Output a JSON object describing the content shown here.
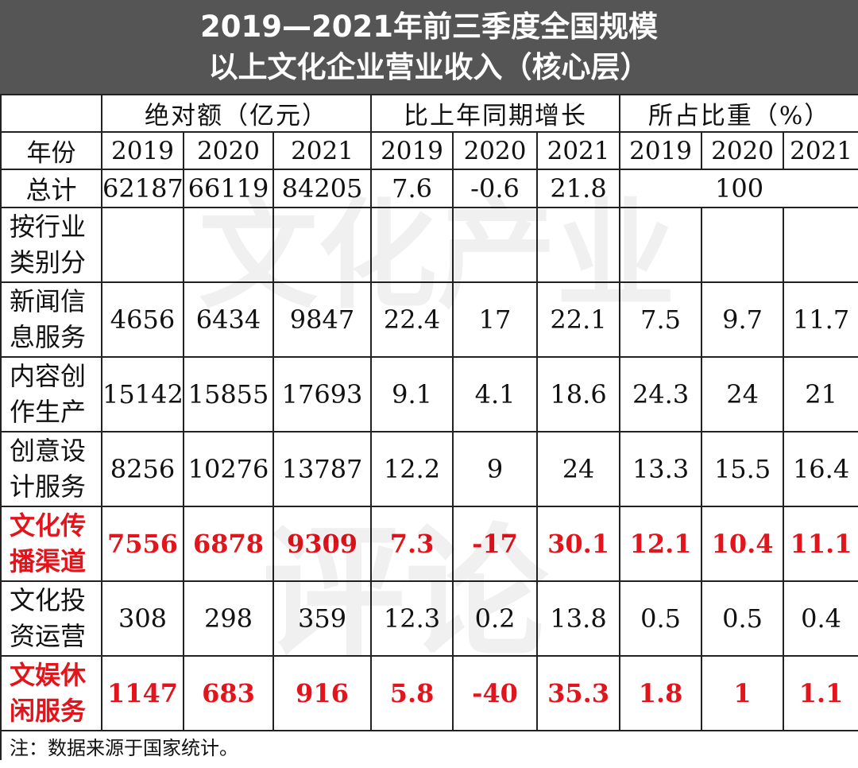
{
  "title": {
    "line1": "2019—2021年前三季度全国规模",
    "line2": "以上文化企业营业收入（核心层）"
  },
  "header": {
    "groups": [
      "绝对额（亿元）",
      "比上年同期增长",
      "所占比重（%）"
    ],
    "year_label": "年份",
    "years": [
      "2019",
      "2020",
      "2021",
      "2019",
      "2020",
      "2021",
      "2019",
      "2020",
      "2021"
    ]
  },
  "total": {
    "label": "总计",
    "values": [
      "62187",
      "66119",
      "84205",
      "7.6",
      "-0.6",
      "21.8"
    ],
    "share": "100"
  },
  "group_row": {
    "line1": "按行业",
    "line2": "类别分"
  },
  "rows": [
    {
      "line1": "新闻信",
      "line2": "息服务",
      "values": [
        "4656",
        "6434",
        "9847",
        "22.4",
        "17",
        "22.1",
        "7.5",
        "9.7",
        "11.7"
      ]
    },
    {
      "line1": "内容创",
      "line2": "作生产",
      "values": [
        "15142",
        "15855",
        "17693",
        "9.1",
        "4.1",
        "18.6",
        "24.3",
        "24",
        "21"
      ]
    },
    {
      "line1": "创意设",
      "line2": "计服务",
      "values": [
        "8256",
        "10276",
        "13787",
        "12.2",
        "9",
        "24",
        "13.3",
        "15.5",
        "16.4"
      ]
    },
    {
      "line1": "文化传",
      "line2": "播渠道",
      "values": [
        "7556",
        "6878",
        "9309",
        "7.3",
        "-17",
        "30.1",
        "12.1",
        "10.4",
        "11.1"
      ]
    },
    {
      "line1": "文化投",
      "line2": "资运营",
      "values": [
        "308",
        "298",
        "359",
        "12.3",
        "0.2",
        "13.8",
        "0.5",
        "0.5",
        "0.4"
      ]
    },
    {
      "line1": "文娱休",
      "line2": "闲服务",
      "values": [
        "1147",
        "683",
        "916",
        "5.8",
        "-40",
        "35.3",
        "1.8",
        "1",
        "1.1"
      ]
    }
  ],
  "note": "注：数据来源于国家统计。",
  "colors": {
    "title_bg": "#555555",
    "highlight": "#e3141b",
    "border": "#222222"
  }
}
